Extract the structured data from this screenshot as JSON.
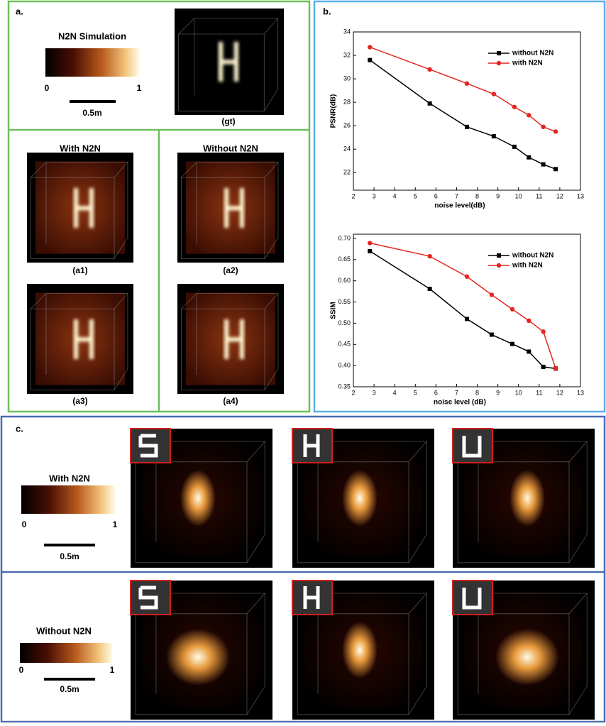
{
  "panel_a": {
    "label": "a.",
    "colorbar_title": "N2N Simulation",
    "colorbar_min": "0",
    "colorbar_max": "1",
    "scale_bar": "0.5m",
    "gt_caption": "(gt)",
    "with_title": "With N2N",
    "without_title": "Without N2N",
    "captions": [
      "(a1)",
      "(a2)",
      "(a3)",
      "(a4)"
    ]
  },
  "panel_b": {
    "label": "b."
  },
  "chart_data": [
    {
      "type": "line",
      "ylabel": "PSNR(dB)",
      "xlabel": "noise level(dB)",
      "legend": "upper right",
      "x": [
        2.8,
        5.7,
        7.5,
        8.8,
        9.8,
        10.5,
        11.2,
        11.8
      ],
      "series": [
        {
          "name": "without N2N",
          "color": "#000000",
          "marker": "square",
          "values": [
            31.6,
            27.9,
            25.9,
            25.1,
            24.2,
            23.3,
            22.7,
            22.3
          ]
        },
        {
          "name": "with N2N",
          "color": "#e3261f",
          "marker": "circle",
          "values": [
            32.7,
            30.8,
            29.6,
            28.7,
            27.6,
            26.9,
            25.9,
            25.5
          ]
        }
      ],
      "xlim": [
        2,
        13
      ],
      "xticks": [
        2,
        3,
        4,
        5,
        6,
        7,
        8,
        9,
        10,
        11,
        12,
        13
      ],
      "ylim": [
        20.5,
        34
      ],
      "yticks": [
        22,
        24,
        26,
        28,
        30,
        32,
        34
      ]
    },
    {
      "type": "line",
      "ylabel": "SSIM",
      "xlabel": "noise level (dB)",
      "legend": "upper right",
      "x": [
        2.8,
        5.7,
        7.5,
        8.7,
        9.7,
        10.5,
        11.2,
        11.8
      ],
      "series": [
        {
          "name": "without N2N",
          "color": "#000000",
          "marker": "square",
          "values": [
            0.67,
            0.581,
            0.51,
            0.473,
            0.451,
            0.433,
            0.397,
            0.393
          ]
        },
        {
          "name": "with N2N",
          "color": "#e3261f",
          "marker": "circle",
          "values": [
            0.689,
            0.658,
            0.61,
            0.567,
            0.533,
            0.506,
            0.48,
            0.393
          ]
        }
      ],
      "xlim": [
        2,
        13
      ],
      "xticks": [
        2,
        3,
        4,
        5,
        6,
        7,
        8,
        9,
        10,
        11,
        12,
        13
      ],
      "ylim": [
        0.35,
        0.71
      ],
      "yticks": [
        0.35,
        {
          "value": 0.4,
          "label": "0.40"
        },
        0.45,
        {
          "value": 0.5,
          "label": "0.50"
        },
        0.55,
        {
          "value": 0.6,
          "label": "0.60"
        },
        0.65,
        {
          "value": 0.7,
          "label": "0.70"
        }
      ]
    }
  ],
  "panel_c": {
    "label": "c.",
    "rows": [
      {
        "title": "With N2N",
        "colorbar_min": "0",
        "colorbar_max": "1",
        "scale_bar": "0.5m"
      },
      {
        "title": "Without N2N",
        "colorbar_min": "0",
        "colorbar_max": "1",
        "scale_bar": "0.5m"
      }
    ]
  }
}
